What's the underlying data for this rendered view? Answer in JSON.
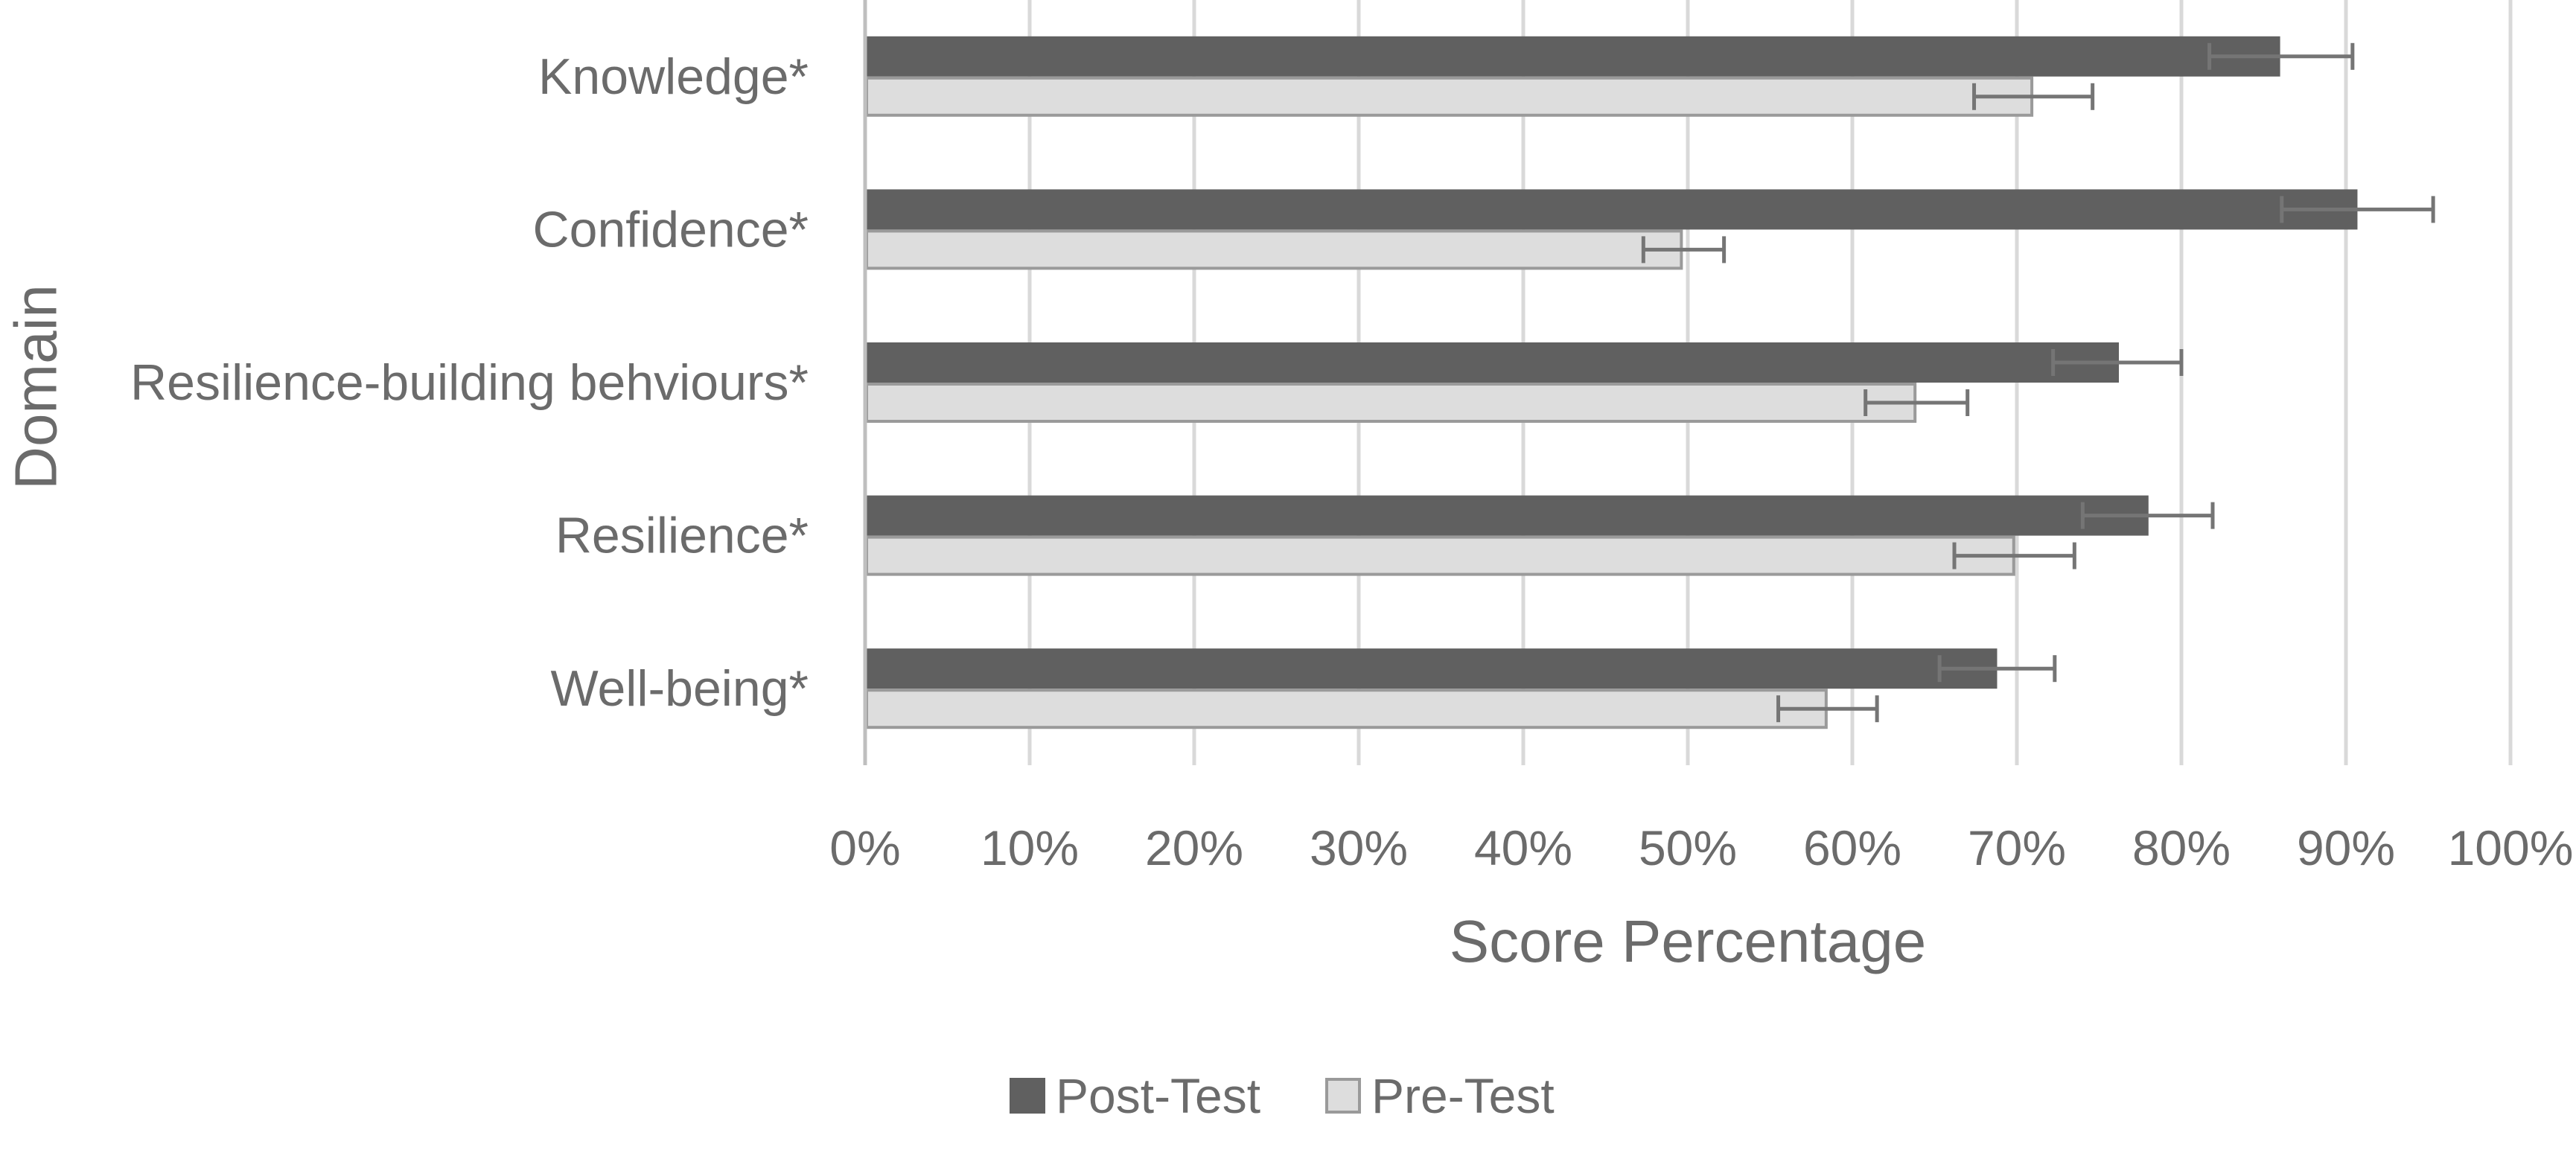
{
  "chart_data": {
    "type": "bar",
    "orientation": "horizontal",
    "title": "",
    "xlabel": "Score Percentage",
    "ylabel": "Domain",
    "xlim": [
      0,
      100
    ],
    "x_ticks": [
      "0%",
      "10%",
      "20%",
      "30%",
      "40%",
      "50%",
      "60%",
      "70%",
      "80%",
      "90%",
      "100%"
    ],
    "grid": "vertical",
    "legend_position": "bottom",
    "categories": [
      "Knowledge*",
      "Confidence*",
      "Resilience-building behviours*",
      "Resilience*",
      "Well-being*"
    ],
    "series": [
      {
        "name": "Post-Test",
        "color": "#606060",
        "border": "#606060",
        "values": [
          86.0,
          90.7,
          76.2,
          78.0,
          68.8
        ],
        "error_low": [
          81.7,
          86.1,
          72.2,
          74.0,
          65.3
        ],
        "error_high": [
          90.4,
          95.3,
          80.0,
          81.9,
          72.3
        ]
      },
      {
        "name": "Pre-Test",
        "color": "#dddddd",
        "border": "#9a9a9a",
        "values": [
          71.0,
          49.7,
          63.9,
          69.9,
          58.5
        ],
        "error_low": [
          67.4,
          47.3,
          60.8,
          66.2,
          55.5
        ],
        "error_high": [
          74.6,
          52.2,
          67.0,
          73.5,
          61.5
        ]
      }
    ]
  }
}
